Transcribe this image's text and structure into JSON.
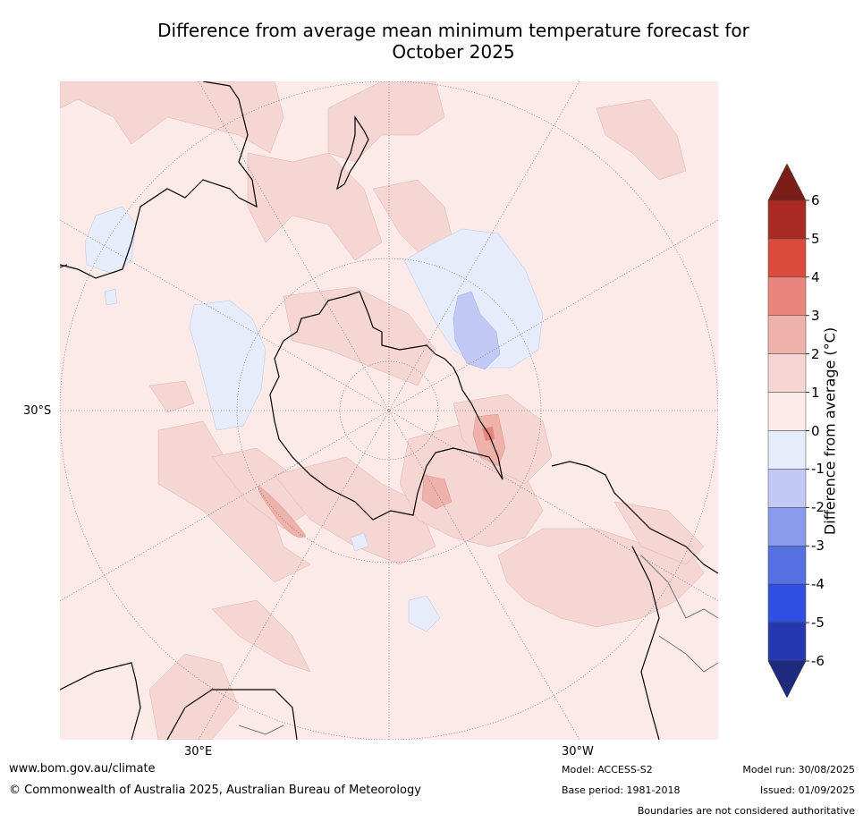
{
  "title_line1": "Difference from average mean minimum temperature forecast for",
  "title_line2": "October 2025",
  "map": {
    "projection": "south-polar-stereographic",
    "lat_labels": [
      "30°S"
    ],
    "lon_labels": [
      "30°E",
      "30°W"
    ]
  },
  "colorbar": {
    "label": "Difference from average (°C)",
    "ticks": [
      "6",
      "5",
      "4",
      "3",
      "2",
      "1",
      "0",
      "-1",
      "-2",
      "-3",
      "-4",
      "-5",
      "-6"
    ],
    "colors": {
      "above_6": "#7a1e1a",
      "5_6": "#a82a22",
      "4_5": "#dc4a3e",
      "3_4": "#e8857c",
      "2_3": "#efb2ab",
      "1_2": "#f5d6d2",
      "0_1": "#fbeae8",
      "m1_0": "#e7ecfb",
      "m2_m1": "#c1c9f4",
      "m3_m2": "#8a9bee",
      "m4_m3": "#5670e2",
      "m5_m4": "#2e4fe0",
      "m6_m5": "#2637b0",
      "below_m6": "#1d2a7e"
    }
  },
  "footer": {
    "url": "www.bom.gov.au/climate",
    "copyright": "© Commonwealth of Australia 2025, Australian Bureau of Meteorology",
    "model": "Model: ACCESS-S2",
    "base_period": "Base period: 1981-2018",
    "model_run": "Model run: 30/08/2025",
    "issued": "Issued: 01/09/2025",
    "disclaimer": "Boundaries are not considered authoritative"
  }
}
